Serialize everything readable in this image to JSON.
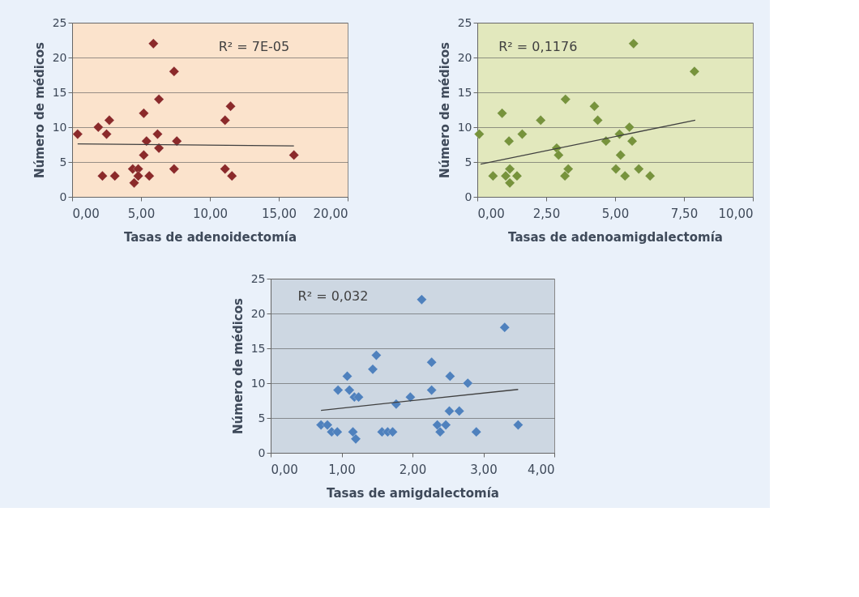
{
  "chart_data": [
    {
      "type": "scatter",
      "xlabel": "Tasas de adenoidectomía",
      "ylabel": "Número de médicos",
      "xlim": [
        0,
        20
      ],
      "ylim": [
        0,
        25
      ],
      "xticks": [
        {
          "value": 0,
          "label": "0,00"
        },
        {
          "value": 5,
          "label": "5,00"
        },
        {
          "value": 10,
          "label": "10,00"
        },
        {
          "value": 15,
          "label": "15,00"
        },
        {
          "value": 20,
          "label": "20,00"
        }
      ],
      "yticks": [
        0,
        5,
        10,
        15,
        20,
        25
      ],
      "grid": "y",
      "series": [
        {
          "marker": "diamond",
          "color": "#8b2a2a",
          "x": [
            0.4,
            1.9,
            2.5,
            2.7,
            2.2,
            3.1,
            4.4,
            4.8,
            4.5,
            4.8,
            5.2,
            5.2,
            5.4,
            5.6,
            5.9,
            6.2,
            6.3,
            6.3,
            7.4,
            7.4,
            7.6,
            11.1,
            11.1,
            11.5,
            11.6,
            16.1
          ],
          "values": [
            9,
            10,
            9,
            11,
            3,
            3,
            4,
            4,
            2,
            3,
            6,
            12,
            8,
            3,
            22,
            9,
            7,
            14,
            18,
            4,
            8,
            11,
            4,
            13,
            3,
            6
          ]
        },
        {
          "type": "line",
          "color": "#404040",
          "x": [
            0.4,
            16.1
          ],
          "values": [
            7.6,
            7.3
          ]
        }
      ],
      "annotations": [
        "R² = 7E-05"
      ]
    },
    {
      "type": "scatter",
      "xlabel": "Tasas de adenoamigdalectomía",
      "ylabel": "Número de médicos",
      "xlim": [
        0,
        10
      ],
      "ylim": [
        0,
        25
      ],
      "xticks": [
        {
          "value": 0,
          "label": "0,00"
        },
        {
          "value": 2.5,
          "label": "2,50"
        },
        {
          "value": 5,
          "label": "5,00"
        },
        {
          "value": 7.5,
          "label": "7,50"
        },
        {
          "value": 10,
          "label": "10,00"
        }
      ],
      "yticks": [
        0,
        5,
        10,
        15,
        20,
        25
      ],
      "grid": "y",
      "series": [
        {
          "marker": "diamond",
          "color": "#77933c",
          "x": [
            0.07,
            0.57,
            0.9,
            1.03,
            1.15,
            1.18,
            1.18,
            1.44,
            1.63,
            2.3,
            2.88,
            2.95,
            3.2,
            3.18,
            3.3,
            4.25,
            4.37,
            4.67,
            5.03,
            5.16,
            5.2,
            5.36,
            5.52,
            5.62,
            5.67,
            5.86,
            6.27,
            7.88
          ],
          "values": [
            9,
            3,
            12,
            3,
            8,
            4,
            2,
            3,
            9,
            11,
            7,
            6,
            14,
            3,
            4,
            13,
            11,
            8,
            4,
            9,
            6,
            3,
            10,
            8,
            22,
            4,
            3,
            18
          ]
        },
        {
          "type": "line",
          "color": "#404040",
          "x": [
            0.12,
            7.91
          ],
          "values": [
            4.7,
            11.0
          ]
        }
      ],
      "annotations": [
        "R² = 0,1176"
      ]
    },
    {
      "type": "scatter",
      "xlabel": "Tasas de amigdalectomía",
      "ylabel": "Número de médicos",
      "xlim": [
        0,
        4
      ],
      "ylim": [
        0,
        25
      ],
      "xticks": [
        {
          "value": 0,
          "label": "0,00"
        },
        {
          "value": 1,
          "label": "1,00"
        },
        {
          "value": 2,
          "label": "2,00"
        },
        {
          "value": 3,
          "label": "3,00"
        },
        {
          "value": 4,
          "label": "4,00"
        }
      ],
      "yticks": [
        0,
        5,
        10,
        15,
        20,
        25
      ],
      "grid": "y",
      "series": [
        {
          "marker": "diamond",
          "color": "#4f81bd",
          "x": [
            0.71,
            0.8,
            0.86,
            0.94,
            0.95,
            1.08,
            1.11,
            1.18,
            1.16,
            1.2,
            1.24,
            1.44,
            1.49,
            1.57,
            1.65,
            1.72,
            1.77,
            1.97,
            2.13,
            2.27,
            2.27,
            2.35,
            2.39,
            2.47,
            2.52,
            2.53,
            2.66,
            2.78,
            2.9,
            3.3,
            3.49
          ],
          "values": [
            4,
            4,
            3,
            3,
            9,
            11,
            9,
            8,
            3,
            2,
            8,
            12,
            14,
            3,
            3,
            3,
            7,
            8,
            22,
            13,
            9,
            4,
            3,
            4,
            6,
            11,
            6,
            10,
            3,
            18,
            4
          ]
        },
        {
          "type": "line",
          "color": "#404040",
          "x": [
            0.71,
            3.49
          ],
          "values": [
            6.1,
            9.1
          ]
        }
      ],
      "annotations": [
        "R² = 0,032"
      ]
    }
  ]
}
